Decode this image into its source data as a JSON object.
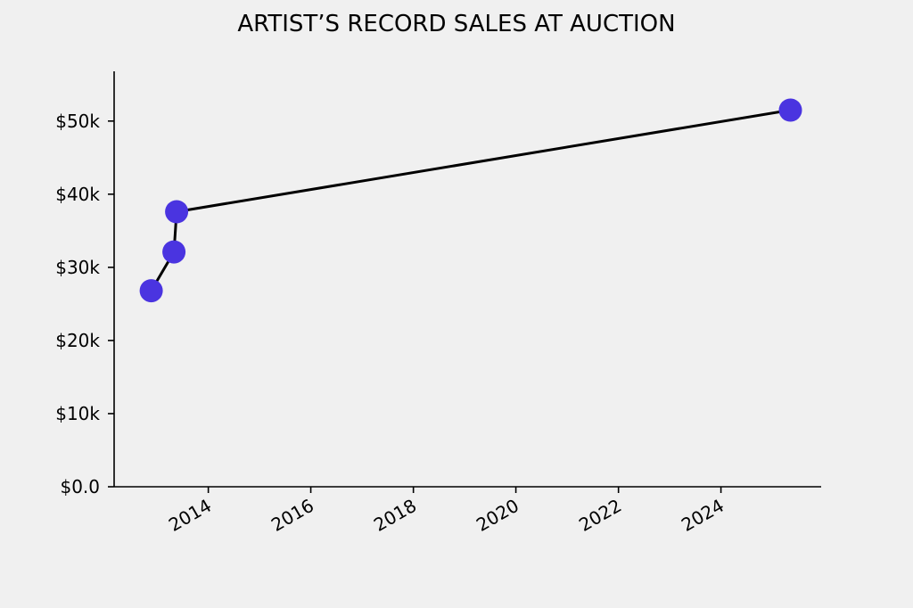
{
  "chart_data": {
    "type": "line",
    "title": "ARTIST’S RECORD SALES AT AUCTION",
    "xlabel": "",
    "ylabel": "",
    "x_scale": "date",
    "xlim": [
      "2012-03-01",
      "2025-12-15"
    ],
    "ylim": [
      0,
      56800
    ],
    "x_ticks": [
      "2014-01-01",
      "2016-01-01",
      "2018-01-01",
      "2020-01-01",
      "2022-01-01",
      "2024-01-01"
    ],
    "x_tick_labels": [
      "2014",
      "2016",
      "2018",
      "2020",
      "2022",
      "2024"
    ],
    "y_ticks": [
      0,
      10000,
      20000,
      30000,
      40000,
      50000
    ],
    "y_tick_labels": [
      "$0.0",
      "$10k",
      "$20k",
      "$30k",
      "$40k",
      "$50k"
    ],
    "grid": false,
    "legend": "none",
    "series": [
      {
        "points": [
          {
            "x": "2012-11-20",
            "y": 26800
          },
          {
            "x": "2013-05-01",
            "y": 32100
          },
          {
            "x": "2013-05-20",
            "y": 37600
          },
          {
            "x": "2025-05-10",
            "y": 51500
          }
        ],
        "line_color": "#000000",
        "marker_color": "#4a34e0"
      }
    ]
  }
}
